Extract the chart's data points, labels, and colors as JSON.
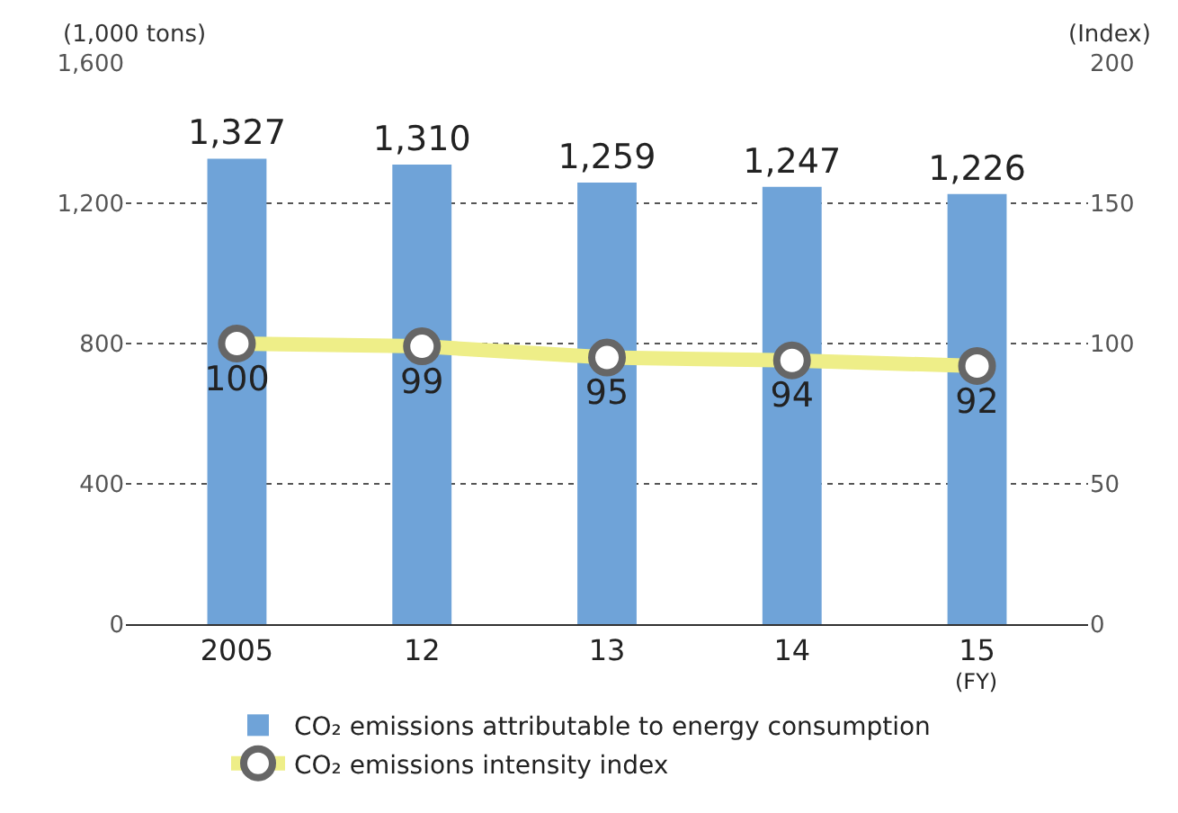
{
  "chart_data": {
    "type": "bar",
    "categories": [
      "2005",
      "12",
      "13",
      "14",
      "15"
    ],
    "ylabel": "(1,000 tons)",
    "y2label": "(Index)",
    "ylim": [
      0,
      1600
    ],
    "yticks": [
      0,
      {
        "value": 400,
        "label": "400"
      },
      {
        "value": 800,
        "label": "800"
      },
      {
        "value": 1200,
        "label": "1,200"
      },
      {
        "value": 1600,
        "label": "1,600"
      }
    ],
    "y2lim": [
      0,
      200
    ],
    "y2ticks": [
      0,
      50,
      100,
      150,
      200
    ],
    "grid": "y",
    "legend": "bottom",
    "annotations": [
      "(FY)"
    ],
    "series": [
      {
        "name": "CO₂ emissions attributable to energy consumption",
        "color": "#6fa3d8",
        "values": [
          1327,
          1310,
          1259,
          1247,
          1226
        ],
        "value_labels": [
          "1,327",
          "1,310",
          "1,259",
          "1,247",
          "1,226"
        ]
      },
      {
        "type": "line",
        "axis": "y2",
        "name": "CO₂ emissions intensity index",
        "color": "#eeee88",
        "marker": "circle",
        "data_labels": true,
        "values": [
          100,
          99,
          95,
          94,
          92
        ]
      }
    ]
  }
}
